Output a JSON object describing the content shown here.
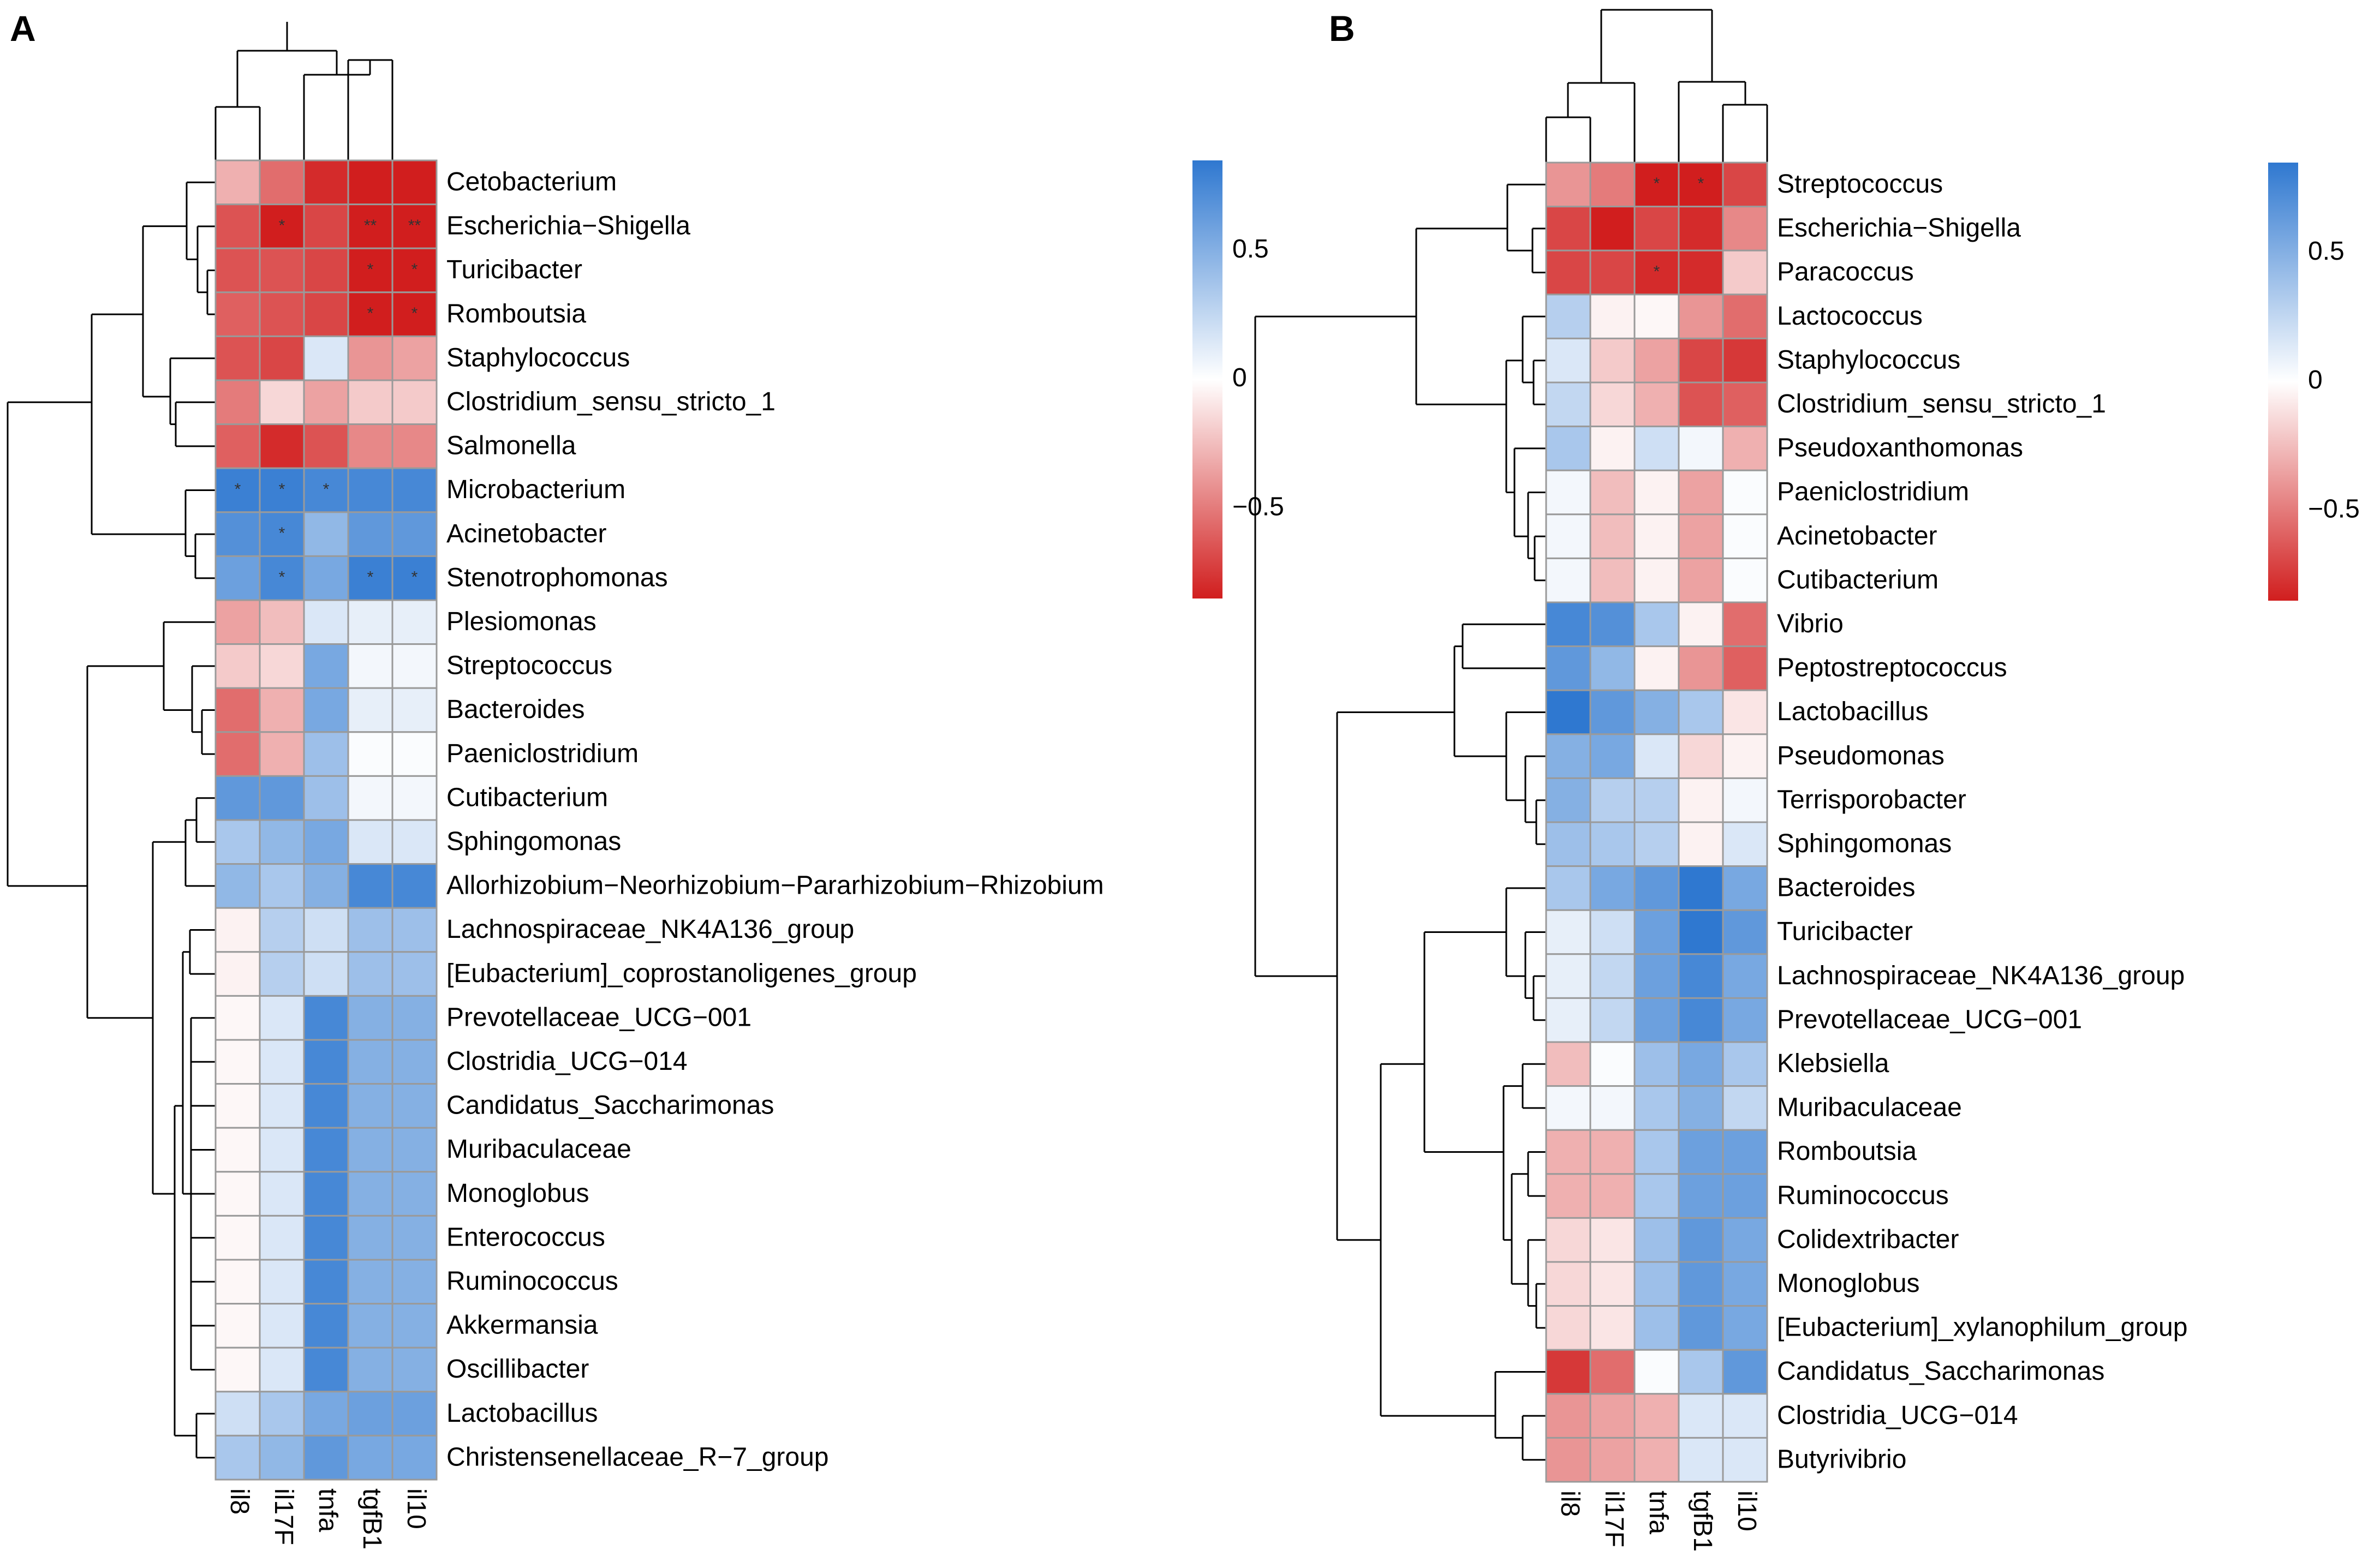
{
  "chart_data": [
    {
      "type": "heatmap",
      "panel_label": "A",
      "title": "",
      "columns": [
        "il8",
        "il17F",
        "tnfa",
        "tgfB1",
        "il10"
      ],
      "rows": [
        "Cetobacterium",
        "Escherichia−Shigella",
        "Turicibacter",
        "Romboutsia",
        "Staphylococcus",
        "Clostridium_sensu_stricto_1",
        "Salmonella",
        "Microbacterium",
        "Acinetobacter",
        "Stenotrophomonas",
        "Plesiomonas",
        "Streptococcus",
        "Bacteroides",
        "Paeniclostridium",
        "Cutibacterium",
        "Sphingomonas",
        "Allorhizobium−Neorhizobium−Pararhizobium−Rhizobium",
        "Lachnospiraceae_NK4A136_group",
        "[Eubacterium]_coprostanoligenes_group",
        "Prevotellaceae_UCG−001",
        "Clostridia_UCG−014",
        "Candidatus_Saccharimonas",
        "Muribaculaceae",
        "Monoglobus",
        "Enterococcus",
        "Ruminococcus",
        "Akkermansia",
        "Oscillibacter",
        "Lactobacillus",
        "Christensenellaceae_R−7_group"
      ],
      "values": [
        [
          -0.3,
          -0.55,
          -0.8,
          -0.9,
          -0.9
        ],
        [
          -0.65,
          -0.85,
          -0.7,
          -0.9,
          -0.9
        ],
        [
          -0.65,
          -0.65,
          -0.7,
          -0.9,
          -0.9
        ],
        [
          -0.6,
          -0.65,
          -0.7,
          -0.9,
          -0.9
        ],
        [
          -0.65,
          -0.7,
          0.15,
          -0.4,
          -0.35
        ],
        [
          -0.5,
          -0.15,
          -0.35,
          -0.2,
          -0.2
        ],
        [
          -0.6,
          -0.8,
          -0.65,
          -0.45,
          -0.45
        ],
        [
          0.8,
          0.8,
          0.75,
          0.75,
          0.75
        ],
        [
          0.7,
          0.75,
          0.45,
          0.65,
          0.65
        ],
        [
          0.6,
          0.75,
          0.55,
          0.8,
          0.8
        ],
        [
          -0.35,
          -0.25,
          0.15,
          0.1,
          0.1
        ],
        [
          -0.2,
          -0.15,
          0.55,
          0.05,
          0.05
        ],
        [
          -0.55,
          -0.3,
          0.55,
          0.1,
          0.1
        ],
        [
          -0.55,
          -0.3,
          0.4,
          0.02,
          0.02
        ],
        [
          0.65,
          0.65,
          0.4,
          0.05,
          0.05
        ],
        [
          0.35,
          0.45,
          0.55,
          0.15,
          0.15
        ],
        [
          0.45,
          0.35,
          0.5,
          0.75,
          0.75
        ],
        [
          -0.05,
          0.3,
          0.2,
          0.4,
          0.4
        ],
        [
          -0.05,
          0.3,
          0.2,
          0.4,
          0.4
        ],
        [
          -0.03,
          0.15,
          0.75,
          0.5,
          0.5
        ],
        [
          -0.03,
          0.15,
          0.75,
          0.5,
          0.5
        ],
        [
          -0.03,
          0.15,
          0.75,
          0.5,
          0.5
        ],
        [
          -0.03,
          0.15,
          0.75,
          0.5,
          0.5
        ],
        [
          -0.03,
          0.15,
          0.75,
          0.5,
          0.5
        ],
        [
          -0.03,
          0.15,
          0.75,
          0.5,
          0.5
        ],
        [
          -0.03,
          0.15,
          0.75,
          0.5,
          0.5
        ],
        [
          -0.03,
          0.15,
          0.75,
          0.5,
          0.5
        ],
        [
          -0.03,
          0.15,
          0.75,
          0.5,
          0.5
        ],
        [
          0.2,
          0.35,
          0.55,
          0.6,
          0.6
        ],
        [
          0.35,
          0.45,
          0.65,
          0.55,
          0.55
        ]
      ],
      "stars": [
        [
          "",
          "",
          "",
          "",
          ""
        ],
        [
          "",
          "*",
          "",
          "**",
          "**"
        ],
        [
          "",
          "",
          "",
          "*",
          "*"
        ],
        [
          "",
          "",
          "",
          "*",
          "*"
        ],
        [
          "",
          "",
          "",
          "",
          ""
        ],
        [
          "",
          "",
          "",
          "",
          ""
        ],
        [
          "",
          "",
          "",
          "",
          ""
        ],
        [
          "*",
          "*",
          "*",
          "",
          ""
        ],
        [
          "",
          "*",
          "",
          "",
          ""
        ],
        [
          "",
          "*",
          "",
          "*",
          "*"
        ],
        [
          "",
          "",
          "",
          "",
          ""
        ],
        [
          "",
          "",
          "",
          "",
          ""
        ],
        [
          "",
          "",
          "",
          "",
          ""
        ],
        [
          "",
          "",
          "",
          "",
          ""
        ],
        [
          "",
          "",
          "",
          "",
          ""
        ],
        [
          "",
          "",
          "",
          "",
          ""
        ],
        [
          "",
          "",
          "",
          "",
          ""
        ],
        [
          "",
          "",
          "",
          "",
          ""
        ],
        [
          "",
          "",
          "",
          "",
          ""
        ],
        [
          "",
          "",
          "",
          "",
          ""
        ],
        [
          "",
          "",
          "",
          "",
          ""
        ],
        [
          "",
          "",
          "",
          "",
          ""
        ],
        [
          "",
          "",
          "",
          "",
          ""
        ],
        [
          "",
          "",
          "",
          "",
          ""
        ],
        [
          "",
          "",
          "",
          "",
          ""
        ],
        [
          "",
          "",
          "",
          "",
          ""
        ],
        [
          "",
          "",
          "",
          "",
          ""
        ],
        [
          "",
          "",
          "",
          "",
          ""
        ],
        [
          "",
          "",
          "",
          "",
          ""
        ],
        [
          "",
          "",
          "",
          "",
          ""
        ]
      ],
      "legend": {
        "ticks": [
          0.5,
          0,
          -0.5
        ],
        "tick_labels": [
          "0.5",
          "0",
          "−0.5"
        ],
        "range": [
          -0.85,
          0.85
        ]
      }
    },
    {
      "type": "heatmap",
      "panel_label": "B",
      "title": "",
      "columns": [
        "il8",
        "il17F",
        "tnfa",
        "tgfB1",
        "il10"
      ],
      "rows": [
        "Streptococcus",
        "Escherichia−Shigella",
        "Paracoccus",
        "Lactococcus",
        "Staphylococcus",
        "Clostridium_sensu_stricto_1",
        "Pseudoxanthomonas",
        "Paeniclostridium",
        "Acinetobacter",
        "Cutibacterium",
        "Vibrio",
        "Peptostreptococcus",
        "Lactobacillus",
        "Pseudomonas",
        "Terrisporobacter",
        "Sphingomonas",
        "Bacteroides",
        "Turicibacter",
        "Lachnospiraceae_NK4A136_group",
        "Prevotellaceae_UCG−001",
        "Klebsiella",
        "Muribaculaceae",
        "Romboutsia",
        "Ruminococcus",
        "Colidextribacter",
        "Monoglobus",
        "[Eubacterium]_xylanophilum_group",
        "Candidatus_Saccharimonas",
        "Clostridia_UCG−014",
        "Butyrivibrio"
      ],
      "values": [
        [
          -0.4,
          -0.5,
          -0.85,
          -0.9,
          -0.7
        ],
        [
          -0.7,
          -0.85,
          -0.7,
          -0.8,
          -0.45
        ],
        [
          -0.7,
          -0.7,
          -0.8,
          -0.8,
          -0.2
        ],
        [
          0.3,
          -0.05,
          -0.03,
          -0.4,
          -0.55
        ],
        [
          0.15,
          -0.2,
          -0.35,
          -0.7,
          -0.75
        ],
        [
          0.25,
          -0.15,
          -0.3,
          -0.65,
          -0.6
        ],
        [
          0.35,
          -0.05,
          0.2,
          0.05,
          -0.3
        ],
        [
          0.05,
          -0.25,
          -0.05,
          -0.35,
          0.02
        ],
        [
          0.05,
          -0.25,
          -0.05,
          -0.35,
          0.02
        ],
        [
          0.05,
          -0.25,
          -0.05,
          -0.35,
          0.02
        ],
        [
          0.75,
          0.7,
          0.35,
          -0.05,
          -0.55
        ],
        [
          0.65,
          0.45,
          -0.05,
          -0.4,
          -0.6
        ],
        [
          0.85,
          0.65,
          0.5,
          0.35,
          -0.1
        ],
        [
          0.5,
          0.55,
          0.15,
          -0.15,
          -0.05
        ],
        [
          0.5,
          0.3,
          0.3,
          -0.05,
          0.05
        ],
        [
          0.4,
          0.35,
          0.3,
          -0.05,
          0.15
        ],
        [
          0.35,
          0.55,
          0.65,
          0.85,
          0.55
        ],
        [
          0.1,
          0.2,
          0.6,
          0.85,
          0.65
        ],
        [
          0.1,
          0.25,
          0.6,
          0.75,
          0.55
        ],
        [
          0.1,
          0.25,
          0.6,
          0.75,
          0.55
        ],
        [
          -0.25,
          0.02,
          0.4,
          0.55,
          0.35
        ],
        [
          0.05,
          0.05,
          0.35,
          0.5,
          0.25
        ],
        [
          -0.3,
          -0.3,
          0.35,
          0.6,
          0.6
        ],
        [
          -0.3,
          -0.3,
          0.35,
          0.6,
          0.6
        ],
        [
          -0.15,
          -0.1,
          0.4,
          0.65,
          0.55
        ],
        [
          -0.15,
          -0.1,
          0.4,
          0.65,
          0.55
        ],
        [
          -0.15,
          -0.1,
          0.4,
          0.65,
          0.55
        ],
        [
          -0.75,
          -0.55,
          0.02,
          0.35,
          0.65
        ],
        [
          -0.4,
          -0.35,
          -0.3,
          0.15,
          0.15
        ],
        [
          -0.4,
          -0.35,
          -0.3,
          0.15,
          0.15
        ]
      ],
      "stars": [
        [
          "",
          "",
          "*",
          "*",
          ""
        ],
        [
          "",
          "",
          "",
          "",
          ""
        ],
        [
          "",
          "",
          "*",
          "",
          ""
        ],
        [
          "",
          "",
          "",
          "",
          ""
        ],
        [
          "",
          "",
          "",
          "",
          ""
        ],
        [
          "",
          "",
          "",
          "",
          ""
        ],
        [
          "",
          "",
          "",
          "",
          ""
        ],
        [
          "",
          "",
          "",
          "",
          ""
        ],
        [
          "",
          "",
          "",
          "",
          ""
        ],
        [
          "",
          "",
          "",
          "",
          ""
        ],
        [
          "",
          "",
          "",
          "",
          ""
        ],
        [
          "",
          "",
          "",
          "",
          ""
        ],
        [
          "",
          "",
          "",
          "",
          ""
        ],
        [
          "",
          "",
          "",
          "",
          ""
        ],
        [
          "",
          "",
          "",
          "",
          ""
        ],
        [
          "",
          "",
          "",
          "",
          ""
        ],
        [
          "",
          "",
          "",
          "",
          ""
        ],
        [
          "",
          "",
          "",
          "",
          ""
        ],
        [
          "",
          "",
          "",
          "",
          ""
        ],
        [
          "",
          "",
          "",
          "",
          ""
        ],
        [
          "",
          "",
          "",
          "",
          ""
        ],
        [
          "",
          "",
          "",
          "",
          ""
        ],
        [
          "",
          "",
          "",
          "",
          ""
        ],
        [
          "",
          "",
          "",
          "",
          ""
        ],
        [
          "",
          "",
          "",
          "",
          ""
        ],
        [
          "",
          "",
          "",
          "",
          ""
        ],
        [
          "",
          "",
          "",
          "",
          ""
        ],
        [
          "",
          "",
          "",
          "",
          ""
        ],
        [
          "",
          "",
          "",
          "",
          ""
        ],
        [
          "",
          "",
          "",
          "",
          ""
        ]
      ],
      "legend": {
        "ticks": [
          0.5,
          0,
          -0.5
        ],
        "tick_labels": [
          "0.5",
          "0",
          "−0.5"
        ],
        "range": [
          -0.85,
          0.85
        ]
      }
    }
  ]
}
